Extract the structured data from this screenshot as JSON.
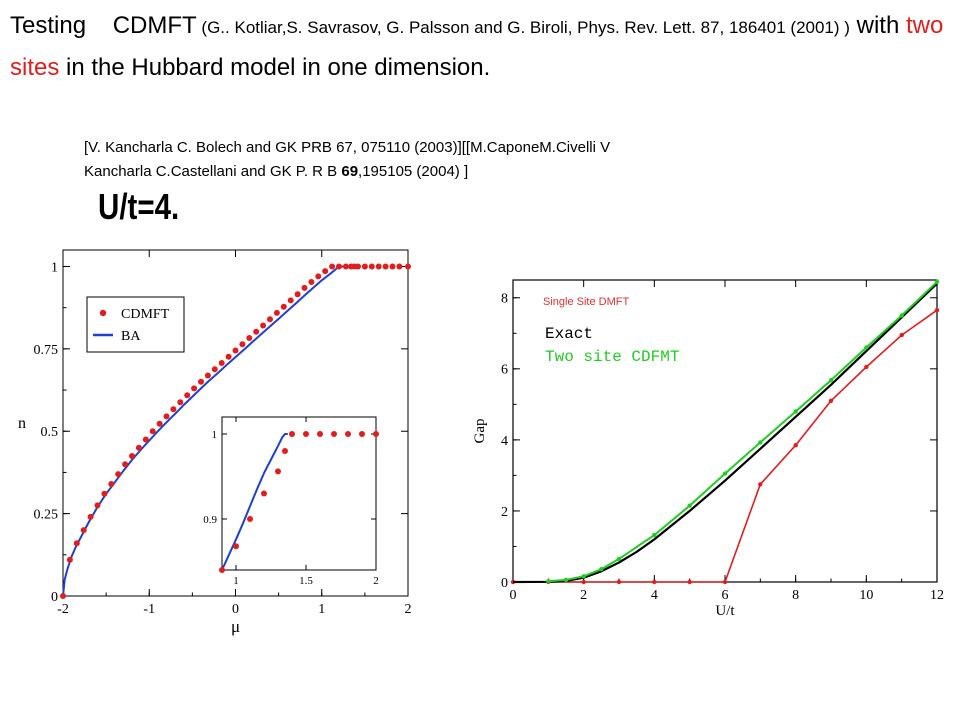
{
  "heading": {
    "part1": "Testing",
    "part2": "CDMFT",
    "part3": " (G.. Kotliar,S. Savrasov, G. Palsson and G. Biroli, Phys. Rev. Lett. 87, 186401 (2001) )",
    "part4": " with ",
    "part5": "two sites",
    "part6": " in  the Hubbard model in one dimension."
  },
  "references": {
    "line1": "[V. Kancharla C. Bolech and GK  PRB 67, 075110 (2003)][[M.CaponeM.Civelli  V",
    "line2_pre": "Kancharla C.Castellani and GK  P. R B ",
    "line2_bold": "69",
    "line2_post": ",195105 (2004) ]"
  },
  "subtitle": "U/t=4.",
  "colors": {
    "red": "#e01e1e",
    "blue": "#1f3fd0",
    "green": "#22cc22",
    "black": "#000000",
    "dmft_label": "#e03030"
  },
  "chart_data": [
    {
      "type": "scatter",
      "xlabel": "μ",
      "ylabel": "n",
      "xlim": [
        -2,
        2
      ],
      "ylim": [
        0,
        1.05
      ],
      "xticks": [
        "-2",
        "-1",
        "0",
        "1",
        "2"
      ],
      "yticks": [
        "0",
        "0.25",
        "0.5",
        "0.75",
        "1"
      ],
      "grid": false,
      "legend_position": "top-left",
      "series": [
        {
          "name": "CDMFT",
          "style": "red-dots",
          "x": [
            -2.0,
            -1.92,
            -1.84,
            -1.76,
            -1.68,
            -1.6,
            -1.52,
            -1.44,
            -1.36,
            -1.28,
            -1.2,
            -1.12,
            -1.04,
            -0.96,
            -0.88,
            -0.8,
            -0.72,
            -0.64,
            -0.56,
            -0.48,
            -0.4,
            -0.32,
            -0.24,
            -0.16,
            -0.08,
            0.0,
            0.08,
            0.16,
            0.24,
            0.32,
            0.4,
            0.48,
            0.56,
            0.64,
            0.72,
            0.8,
            0.88,
            0.96,
            1.04,
            1.12,
            1.2,
            1.28,
            1.34,
            1.38,
            1.42,
            1.5,
            1.58,
            1.66,
            1.74,
            1.82,
            1.9,
            2.0
          ],
          "y": [
            0.0,
            0.11,
            0.16,
            0.2,
            0.24,
            0.275,
            0.31,
            0.34,
            0.37,
            0.4,
            0.425,
            0.45,
            0.475,
            0.5,
            0.523,
            0.545,
            0.567,
            0.588,
            0.609,
            0.63,
            0.65,
            0.669,
            0.688,
            0.707,
            0.726,
            0.745,
            0.764,
            0.783,
            0.802,
            0.821,
            0.84,
            0.859,
            0.878,
            0.897,
            0.916,
            0.935,
            0.953,
            0.97,
            0.986,
            1.0,
            1.0,
            1.0,
            1.0,
            1.0,
            1.0,
            1.0,
            1.0,
            1.0,
            1.0,
            1.0,
            1.0,
            1.0
          ]
        },
        {
          "name": "BA",
          "style": "blue-line",
          "x": [
            -2.0,
            -1.98,
            -1.95,
            -1.9,
            -1.85,
            -1.8,
            -1.7,
            -1.6,
            -1.5,
            -1.4,
            -1.3,
            -1.2,
            -1.1,
            -1.0,
            -0.9,
            -0.8,
            -0.7,
            -0.6,
            -0.5,
            -0.4,
            -0.3,
            -0.2,
            -0.1,
            0.0,
            0.1,
            0.2,
            0.3,
            0.4,
            0.5,
            0.6,
            0.7,
            0.8,
            0.9,
            1.0,
            1.1,
            1.2,
            1.3,
            1.35,
            1.38
          ],
          "y": [
            0.0,
            0.05,
            0.08,
            0.12,
            0.15,
            0.175,
            0.225,
            0.27,
            0.31,
            0.345,
            0.38,
            0.413,
            0.443,
            0.472,
            0.5,
            0.527,
            0.553,
            0.58,
            0.605,
            0.63,
            0.655,
            0.678,
            0.702,
            0.725,
            0.748,
            0.772,
            0.795,
            0.818,
            0.841,
            0.865,
            0.888,
            0.912,
            0.935,
            0.958,
            0.978,
            1.0,
            1.0,
            1.0,
            1.0
          ]
        }
      ]
    },
    {
      "type": "scatter",
      "role": "inset",
      "xlim": [
        0.9,
        2.0
      ],
      "ylim": [
        0.84,
        1.02
      ],
      "xticks": [
        "1",
        "1.5",
        "2"
      ],
      "yticks": [
        "0.9",
        "1"
      ],
      "grid": false,
      "series": [
        {
          "name": "CDMFT",
          "style": "red-dots",
          "x": [
            0.9,
            1.0,
            1.1,
            1.2,
            1.3,
            1.35,
            1.4,
            1.5,
            1.6,
            1.7,
            1.8,
            1.9,
            2.0
          ],
          "y": [
            0.84,
            0.868,
            0.9,
            0.93,
            0.956,
            0.98,
            1.0,
            1.0,
            1.0,
            1.0,
            1.0,
            1.0,
            1.0
          ]
        },
        {
          "name": "BA",
          "style": "blue-line",
          "x": [
            0.9,
            0.95,
            1.0,
            1.05,
            1.1,
            1.15,
            1.2,
            1.25,
            1.3,
            1.33,
            1.35,
            1.37
          ],
          "y": [
            0.84,
            0.858,
            0.876,
            0.895,
            0.915,
            0.935,
            0.954,
            0.97,
            0.986,
            0.996,
            1.0,
            1.0
          ]
        }
      ]
    },
    {
      "type": "line",
      "xlabel": "U/t",
      "ylabel": "Gap",
      "xlim": [
        0,
        12
      ],
      "ylim": [
        0,
        8.5
      ],
      "xticks": [
        "0",
        "2",
        "4",
        "6",
        "8",
        "10",
        "12"
      ],
      "yticks": [
        "0",
        "2",
        "4",
        "6",
        "8"
      ],
      "grid": false,
      "legend_position": "top-left",
      "series": [
        {
          "name": "Single Site DMFT",
          "style": "red-line-markers",
          "x": [
            0,
            1,
            2,
            3,
            4,
            5,
            6,
            7,
            8,
            9,
            10,
            11,
            12
          ],
          "y": [
            0,
            0,
            0,
            0,
            0,
            0,
            0,
            2.75,
            3.85,
            5.1,
            6.05,
            6.95,
            7.65
          ]
        },
        {
          "name": "Exact",
          "style": "black-line",
          "x": [
            0,
            1,
            1.5,
            2,
            2.5,
            3,
            3.5,
            4,
            5,
            6,
            7,
            8,
            9,
            10,
            11,
            12
          ],
          "y": [
            0,
            0.005,
            0.03,
            0.12,
            0.3,
            0.55,
            0.85,
            1.2,
            2.0,
            2.85,
            3.75,
            4.65,
            5.55,
            6.5,
            7.45,
            8.4
          ]
        },
        {
          "name": "Two site CDFMT",
          "style": "green-line-markers",
          "x": [
            1,
            1.5,
            2,
            2.5,
            3,
            4,
            5,
            6,
            7,
            8,
            9,
            10,
            11,
            12
          ],
          "y": [
            0.02,
            0.06,
            0.16,
            0.36,
            0.65,
            1.32,
            2.15,
            3.05,
            3.93,
            4.8,
            5.68,
            6.6,
            7.5,
            8.45
          ]
        }
      ]
    }
  ]
}
